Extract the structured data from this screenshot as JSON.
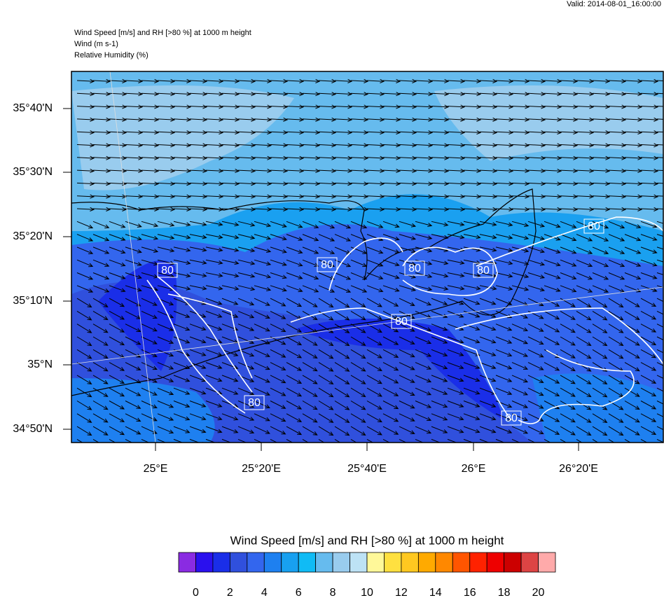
{
  "header": {
    "valid": "Valid: 2014-08-01_16:00:00",
    "title": "Wind Speed [m/s] and RH [>80 %] at 1000 m height",
    "line2": "Wind    (m s-1)",
    "line3": "Relative Humidity    (%)"
  },
  "map": {
    "lat_labels": [
      "35°40'N",
      "35°30'N",
      "35°20'N",
      "35°10'N",
      "35°N",
      "34°50'N"
    ],
    "lon_labels": [
      "25°E",
      "25°20'E",
      "25°40'E",
      "26°E",
      "26°20'E"
    ],
    "contour_labels": [
      "80",
      "80",
      "80",
      "80",
      "80",
      "80",
      "80",
      "80"
    ]
  },
  "colorbar": {
    "title": "Wind Speed [m/s] and RH [>80 %] at 1000 m height",
    "colors": [
      "#8a2be2",
      "#2a10ee",
      "#1a2ee8",
      "#3050dd",
      "#3366ee",
      "#1e80f0",
      "#18a0f0",
      "#10bbf5",
      "#66bbee",
      "#99ccee",
      "#bde2f5",
      "#fff899",
      "#ffe040",
      "#ffc820",
      "#ffaa00",
      "#ff8800",
      "#ff5500",
      "#ff2200",
      "#ee0000",
      "#cc0000",
      "#dd4444",
      "#ffaaaa"
    ],
    "labels": [
      "0",
      "2",
      "4",
      "6",
      "8",
      "10",
      "12",
      "14",
      "16",
      "18",
      "20"
    ]
  }
}
